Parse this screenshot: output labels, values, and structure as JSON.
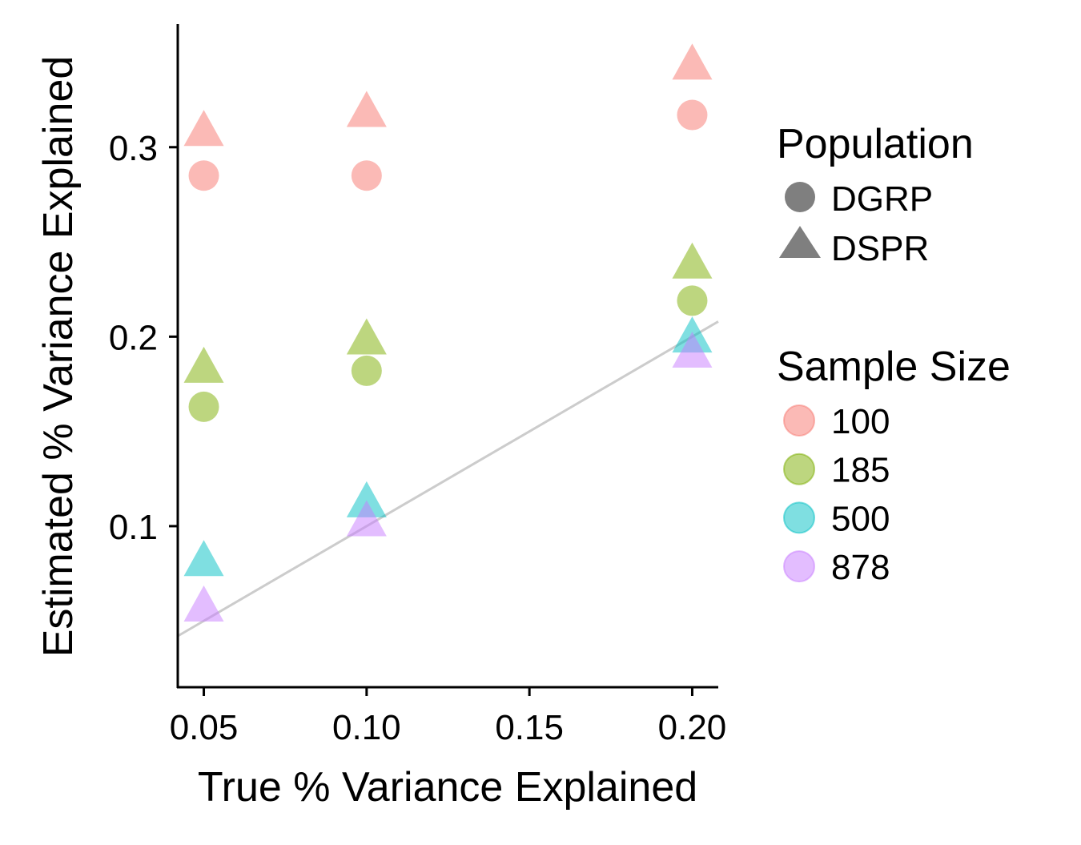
{
  "chart_data": {
    "type": "scatter",
    "xlabel": "True % Variance Explained",
    "ylabel": "Estimated % Variance Explained",
    "xlim": [
      0.042,
      0.208
    ],
    "ylim": [
      0.015,
      0.365
    ],
    "x_ticks": [
      0.05,
      0.1,
      0.15,
      0.2
    ],
    "x_tick_labels": [
      "0.05",
      "0.10",
      "0.15",
      "0.20"
    ],
    "y_ticks": [
      0.1,
      0.2,
      0.3
    ],
    "y_tick_labels": [
      "0.1",
      "0.2",
      "0.3"
    ],
    "grid": false,
    "legend_position": "right",
    "reference_line": {
      "slope": 1,
      "intercept": 0,
      "color": "#cccccc"
    },
    "legends": {
      "population": {
        "title": "Population",
        "items": [
          {
            "label": "DGRP",
            "shape": "circle"
          },
          {
            "label": "DSPR",
            "shape": "triangle"
          }
        ]
      },
      "sample_size": {
        "title": "Sample Size",
        "items": [
          {
            "label": "100",
            "color": "#F8766D"
          },
          {
            "label": "185",
            "color": "#7CAE00"
          },
          {
            "label": "500",
            "color": "#00BFC4"
          },
          {
            "label": "878",
            "color": "#C77CFF"
          }
        ]
      }
    },
    "series": [
      {
        "population": "DGRP",
        "sample_size": "100",
        "points": [
          [
            0.05,
            0.285
          ],
          [
            0.1,
            0.285
          ],
          [
            0.2,
            0.317
          ]
        ]
      },
      {
        "population": "DGRP",
        "sample_size": "185",
        "points": [
          [
            0.05,
            0.163
          ],
          [
            0.1,
            0.182
          ],
          [
            0.2,
            0.219
          ]
        ]
      },
      {
        "population": "DSPR",
        "sample_size": "100",
        "points": [
          [
            0.05,
            0.307
          ],
          [
            0.1,
            0.317
          ],
          [
            0.2,
            0.342
          ]
        ]
      },
      {
        "population": "DSPR",
        "sample_size": "185",
        "points": [
          [
            0.05,
            0.182
          ],
          [
            0.1,
            0.197
          ],
          [
            0.2,
            0.237
          ]
        ]
      },
      {
        "population": "DSPR",
        "sample_size": "500",
        "points": [
          [
            0.05,
            0.08
          ],
          [
            0.1,
            0.111
          ],
          [
            0.2,
            0.198
          ]
        ]
      },
      {
        "population": "DSPR",
        "sample_size": "878",
        "points": [
          [
            0.05,
            0.056
          ],
          [
            0.1,
            0.101
          ],
          [
            0.2,
            0.19
          ]
        ]
      }
    ]
  }
}
